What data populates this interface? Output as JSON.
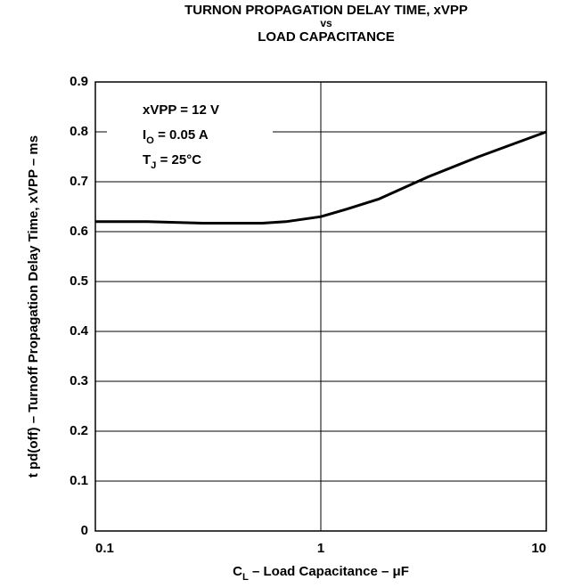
{
  "chart_data": {
    "type": "line",
    "title": [
      "TURNON PROPAGATION DELAY TIME, xVPP",
      "vs",
      "LOAD CAPACITANCE"
    ],
    "xlabel": {
      "pre": "C",
      "sub": "L",
      "post": " – Load Capacitance – μF"
    },
    "ylabel": "t pd(off) – Turnoff Propagation Delay Time, xVPP – ms",
    "annotations": [
      {
        "pre": "xVPP = 12 V",
        "sub": "",
        "post": ""
      },
      {
        "pre": "I",
        "sub": "O",
        "post": " = 0.05 A"
      },
      {
        "pre": "T",
        "sub": "J",
        "post": " = 25°C"
      }
    ],
    "xscale": "log",
    "xlim": [
      0.1,
      10
    ],
    "xticks": [
      0.1,
      1,
      10
    ],
    "ylim": [
      0,
      0.9
    ],
    "yticks": [
      0,
      0.1,
      0.2,
      0.3,
      0.4,
      0.5,
      0.6,
      0.7,
      0.8,
      0.9
    ],
    "grid": true,
    "x": [
      0.1,
      0.17,
      0.3,
      0.55,
      0.7,
      1.0,
      1.3,
      1.8,
      3,
      5,
      10
    ],
    "series": [
      {
        "color": "#000000",
        "values": [
          0.62,
          0.62,
          0.617,
          0.617,
          0.62,
          0.63,
          0.645,
          0.665,
          0.71,
          0.75,
          0.8
        ]
      }
    ]
  }
}
